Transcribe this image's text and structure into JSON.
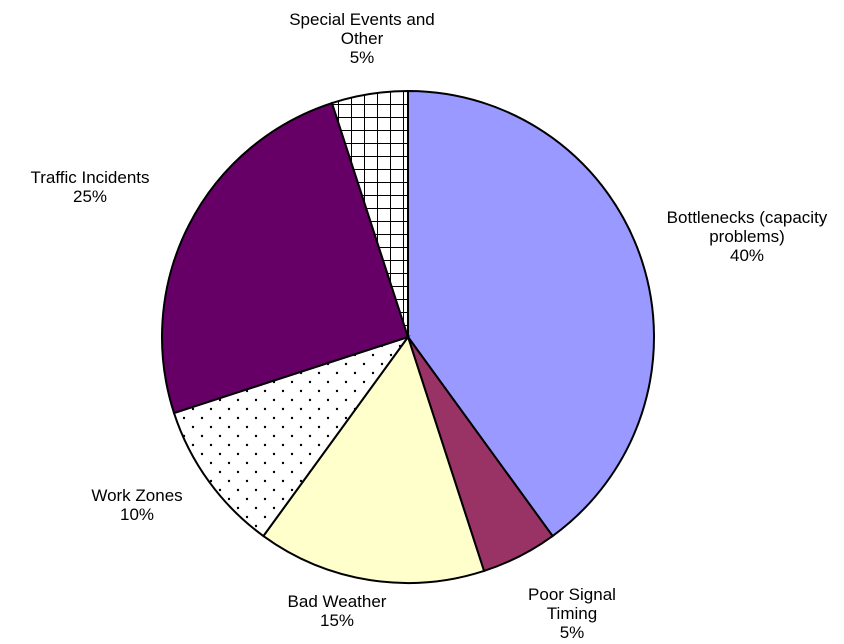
{
  "chart_data": {
    "type": "pie",
    "categories": [
      "Bottlenecks (capacity problems)",
      "Poor Signal Timing",
      "Bad Weather",
      "Work Zones",
      "Traffic Incidents",
      "Special Events and Other"
    ],
    "values": [
      40,
      5,
      15,
      10,
      25,
      5
    ],
    "value_labels": [
      "40%",
      "5%",
      "15%",
      "10%",
      "25%",
      "5%"
    ],
    "colors": [
      "#9999ff",
      "#993366",
      "#ffffcc",
      "#ffffff",
      "#660066",
      "#ffffff"
    ],
    "patterns": [
      "none",
      "none",
      "none",
      "dots",
      "none",
      "grid"
    ]
  }
}
